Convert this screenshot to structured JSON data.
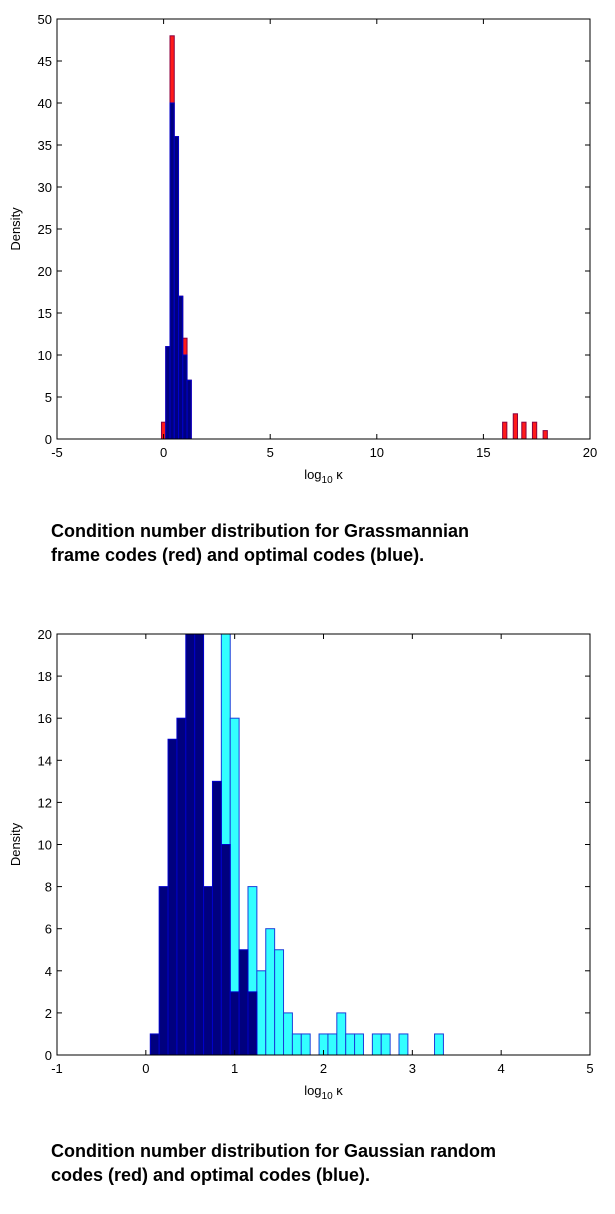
{
  "charts": [
    {
      "caption_lines": [
        "Condition number distribution for Grassmannian",
        "frame codes (red) and optimal codes (blue)."
      ],
      "chart_data": {
        "type": "bar",
        "title": "",
        "xlabel_main": "log",
        "xlabel_sub": "10",
        "xlabel_tail": " κ",
        "ylabel": "Density",
        "xlim": [
          -5,
          20
        ],
        "ylim": [
          0,
          50
        ],
        "xticks": [
          -5,
          0,
          5,
          10,
          15,
          20
        ],
        "yticks": [
          0,
          5,
          10,
          15,
          20,
          25,
          30,
          35,
          40,
          45,
          50
        ],
        "grid": false,
        "colors": {
          "red": "#ff1a1a",
          "red_edge": "#8b0040",
          "blue": "#00007f",
          "blue_edge": "#0000cc"
        },
        "series": [
          {
            "color_key": "red",
            "bins": [
              {
                "x0": -0.1,
                "x1": 0.1,
                "y": 2
              },
              {
                "x0": 0.1,
                "x1": 0.3,
                "y": 11
              },
              {
                "x0": 0.3,
                "x1": 0.5,
                "y": 48
              },
              {
                "x0": 0.5,
                "x1": 0.7,
                "y": 36
              },
              {
                "x0": 0.7,
                "x1": 0.9,
                "y": 17
              },
              {
                "x0": 0.9,
                "x1": 1.1,
                "y": 12
              },
              {
                "x0": 1.1,
                "x1": 1.3,
                "y": 7
              },
              {
                "x0": 15.9,
                "x1": 16.1,
                "y": 2
              },
              {
                "x0": 16.4,
                "x1": 16.6,
                "y": 3
              },
              {
                "x0": 16.8,
                "x1": 17.0,
                "y": 2
              },
              {
                "x0": 17.3,
                "x1": 17.5,
                "y": 2
              },
              {
                "x0": 17.8,
                "x1": 18.0,
                "y": 1
              }
            ]
          },
          {
            "color_key": "blue",
            "bins": [
              {
                "x0": 0.1,
                "x1": 0.3,
                "y": 11
              },
              {
                "x0": 0.3,
                "x1": 0.5,
                "y": 40
              },
              {
                "x0": 0.5,
                "x1": 0.7,
                "y": 36
              },
              {
                "x0": 0.7,
                "x1": 0.9,
                "y": 17
              },
              {
                "x0": 0.9,
                "x1": 1.1,
                "y": 10
              },
              {
                "x0": 1.1,
                "x1": 1.3,
                "y": 7
              }
            ]
          }
        ]
      }
    },
    {
      "caption_lines": [
        "Condition number distribution for Gaussian random",
        "codes (red) and optimal codes (blue)."
      ],
      "chart_data": {
        "type": "bar",
        "title": "",
        "xlabel_main": "log",
        "xlabel_sub": "10",
        "xlabel_tail": " κ",
        "ylabel": "Density",
        "xlim": [
          -1,
          5
        ],
        "ylim": [
          0,
          20
        ],
        "xticks": [
          -1,
          0,
          1,
          2,
          3,
          4,
          5
        ],
        "yticks": [
          0,
          2,
          4,
          6,
          8,
          10,
          12,
          14,
          16,
          18,
          20
        ],
        "grid": false,
        "colors": {
          "cyan": "#33ffff",
          "cyan_edge": "#1a3fd9",
          "blue": "#00007f",
          "blue_edge": "#0000cc"
        },
        "series": [
          {
            "color_key": "cyan",
            "bins": [
              {
                "x0": 0.85,
                "x1": 0.95,
                "y": 20
              },
              {
                "x0": 0.95,
                "x1": 1.05,
                "y": 16
              },
              {
                "x0": 1.15,
                "x1": 1.25,
                "y": 8
              },
              {
                "x0": 1.25,
                "x1": 1.35,
                "y": 4
              },
              {
                "x0": 1.35,
                "x1": 1.45,
                "y": 6
              },
              {
                "x0": 1.45,
                "x1": 1.55,
                "y": 5
              },
              {
                "x0": 1.55,
                "x1": 1.65,
                "y": 2
              },
              {
                "x0": 1.65,
                "x1": 1.75,
                "y": 1
              },
              {
                "x0": 1.75,
                "x1": 1.85,
                "y": 1
              },
              {
                "x0": 1.95,
                "x1": 2.05,
                "y": 1
              },
              {
                "x0": 2.05,
                "x1": 2.15,
                "y": 1
              },
              {
                "x0": 2.15,
                "x1": 2.25,
                "y": 2
              },
              {
                "x0": 2.25,
                "x1": 2.35,
                "y": 1
              },
              {
                "x0": 2.35,
                "x1": 2.45,
                "y": 1
              },
              {
                "x0": 2.55,
                "x1": 2.65,
                "y": 1
              },
              {
                "x0": 2.65,
                "x1": 2.75,
                "y": 1
              },
              {
                "x0": 2.85,
                "x1": 2.95,
                "y": 1
              },
              {
                "x0": 3.25,
                "x1": 3.35,
                "y": 1
              }
            ]
          },
          {
            "color_key": "blue",
            "bins": [
              {
                "x0": 0.05,
                "x1": 0.15,
                "y": 1
              },
              {
                "x0": 0.15,
                "x1": 0.25,
                "y": 8
              },
              {
                "x0": 0.25,
                "x1": 0.35,
                "y": 15
              },
              {
                "x0": 0.35,
                "x1": 0.45,
                "y": 16
              },
              {
                "x0": 0.45,
                "x1": 0.55,
                "y": 20
              },
              {
                "x0": 0.55,
                "x1": 0.65,
                "y": 20
              },
              {
                "x0": 0.65,
                "x1": 0.75,
                "y": 8
              },
              {
                "x0": 0.75,
                "x1": 0.85,
                "y": 13
              },
              {
                "x0": 0.85,
                "x1": 0.95,
                "y": 10
              },
              {
                "x0": 0.95,
                "x1": 1.05,
                "y": 3
              },
              {
                "x0": 1.05,
                "x1": 1.15,
                "y": 5
              },
              {
                "x0": 1.15,
                "x1": 1.25,
                "y": 3
              }
            ]
          }
        ]
      }
    }
  ]
}
